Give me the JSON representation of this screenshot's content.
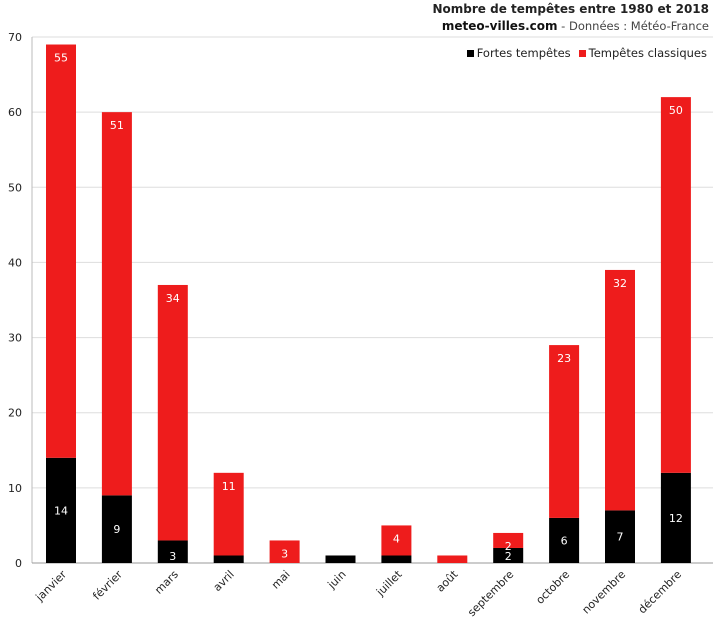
{
  "header": {
    "title": "Nombre de tempêtes entre 1980 et 2018",
    "site": "meteo-villes.com",
    "source": " - Données : Météo-France"
  },
  "colors": {
    "strong": "#000000",
    "classic": "#ee1c1c",
    "grid": "#dddddd"
  },
  "chart_data": {
    "type": "bar",
    "stacked": true,
    "title": "Nombre de tempêtes entre 1980 et 2018",
    "categories": [
      "janvier",
      "février",
      "mars",
      "avril",
      "mai",
      "juin",
      "juillet",
      "août",
      "septembre",
      "octobre",
      "novembre",
      "décembre"
    ],
    "series": [
      {
        "name": "Fortes tempêtes",
        "color": "#000000",
        "values": [
          14,
          9,
          3,
          1,
          0,
          1,
          1,
          0,
          2,
          6,
          7,
          12
        ]
      },
      {
        "name": "Tempêtes classiques",
        "color": "#ee1c1c",
        "values": [
          55,
          51,
          34,
          11,
          3,
          0,
          4,
          1,
          2,
          23,
          32,
          50
        ]
      }
    ],
    "ylim": [
      0,
      70
    ],
    "yticks": [
      0,
      10,
      20,
      30,
      40,
      50,
      60,
      70
    ],
    "grid": true,
    "legend_position": "top-right",
    "data_labels": {
      "Fortes tempêtes": [
        "14",
        "9",
        "3",
        "",
        "",
        "",
        "",
        "",
        "2",
        "6",
        "7",
        "12"
      ],
      "Tempêtes classiques": [
        "55",
        "51",
        "34",
        "11",
        "3",
        "",
        "4",
        "",
        "2",
        "23",
        "32",
        "50"
      ]
    },
    "xlabel": "",
    "ylabel": ""
  }
}
